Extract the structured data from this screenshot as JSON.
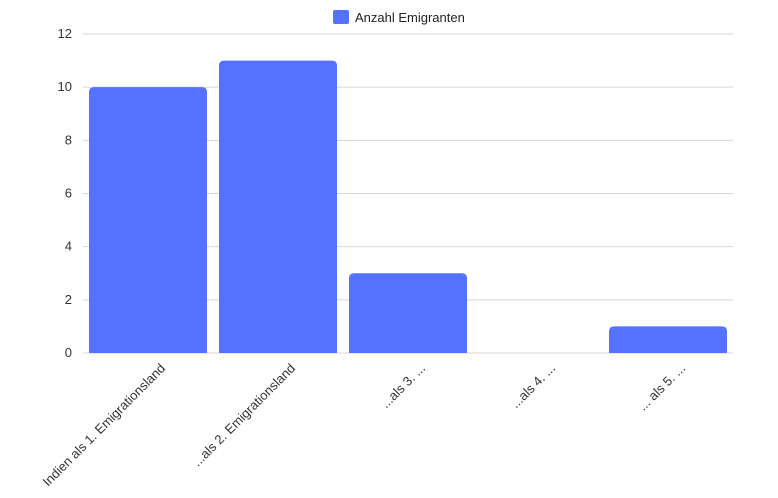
{
  "chart_data": {
    "type": "bar",
    "categories": [
      "Indien als 1. Emigrationsland",
      "...als 2. Emigrationsland",
      "...als 3. ...",
      "...als 4. ...",
      "... als 5. ..."
    ],
    "series": [
      {
        "name": "Anzahl Emigranten",
        "values": [
          10,
          11,
          3,
          0,
          1
        ]
      }
    ],
    "ylim": [
      0,
      12
    ],
    "yticks": [
      "0",
      "2",
      "4",
      "6",
      "8",
      "10",
      "12"
    ],
    "grid": true,
    "legend_position": "top-center",
    "colors": {
      "bar": "#5472ff",
      "grid": "#d6d6d6"
    }
  }
}
